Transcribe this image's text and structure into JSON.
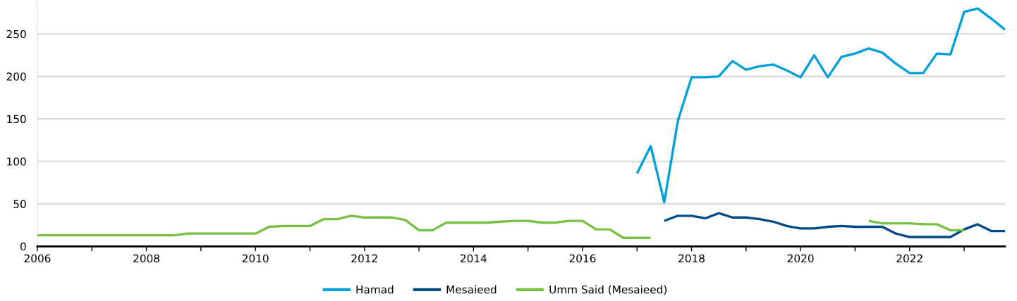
{
  "chart_data": {
    "type": "line",
    "xlim": [
      2006,
      2023.75
    ],
    "xticks": [
      2006,
      {
        "value": 2007,
        "label": null
      },
      2008,
      {
        "value": 2009,
        "label": null
      },
      2010,
      {
        "value": 2011,
        "label": null
      },
      2012,
      {
        "value": 2013,
        "label": null
      },
      2014,
      {
        "value": 2015,
        "label": null
      },
      2016,
      {
        "value": 2017,
        "label": null
      },
      2018,
      {
        "value": 2019,
        "label": null
      },
      2020,
      {
        "value": 2021,
        "label": null
      },
      2022,
      {
        "value": 2023,
        "label": null
      }
    ],
    "ylim": [
      0,
      288
    ],
    "yticks": [
      0,
      50,
      100,
      150,
      200,
      250
    ],
    "grid": "y",
    "legend": "bottom",
    "line_style": "solid",
    "series": [
      {
        "name": "Hamad",
        "color": "#00a0dc",
        "x": [
          2017.0,
          2017.25,
          2017.5,
          2017.75,
          2018.0,
          2018.25,
          2018.5,
          2018.75,
          2019.0,
          2019.25,
          2019.5,
          2019.75,
          2020.0,
          2020.25,
          2020.5,
          2020.75,
          2021.0,
          2021.25,
          2021.5,
          2021.75,
          2022.0,
          2022.25,
          2022.5,
          2022.75,
          2023.0,
          2023.25,
          2023.5,
          2023.75
        ],
        "values": [
          86,
          118,
          52,
          148,
          199,
          199,
          200,
          218,
          208,
          212,
          214,
          207,
          199,
          225,
          199,
          223,
          227,
          233,
          228,
          215,
          204,
          204,
          227,
          226,
          276,
          280,
          268,
          255
        ]
      },
      {
        "name": "Mesaieed",
        "color": "#004b87",
        "x": [
          2017.5,
          2017.75,
          2018.0,
          2018.25,
          2018.5,
          2018.75,
          2019.0,
          2019.25,
          2019.5,
          2019.75,
          2020.0,
          2020.25,
          2020.5,
          2020.75,
          2021.0,
          2021.25,
          2021.5,
          2021.75,
          2022.0,
          2022.25,
          2022.5,
          2022.75,
          2023.0,
          2023.25,
          2023.5,
          2023.75
        ],
        "values": [
          30,
          36,
          36,
          33,
          39,
          34,
          34,
          32,
          29,
          24,
          21,
          21,
          23,
          24,
          23,
          23,
          23,
          15,
          11,
          11,
          11,
          11,
          20,
          26,
          18,
          18
        ]
      },
      {
        "name": "Umm Said (Mesaieed)",
        "color": "#76c043",
        "x": [
          2006.0,
          2006.25,
          2006.5,
          2006.75,
          2007.0,
          2007.25,
          2007.5,
          2007.75,
          2008.0,
          2008.25,
          2008.5,
          2008.75,
          2009.0,
          2009.25,
          2009.5,
          2009.75,
          2010.0,
          2010.25,
          2010.5,
          2010.75,
          2011.0,
          2011.25,
          2011.5,
          2011.75,
          2012.0,
          2012.25,
          2012.5,
          2012.75,
          2013.0,
          2013.25,
          2013.5,
          2013.75,
          2014.0,
          2014.25,
          2014.5,
          2014.75,
          2015.0,
          2015.25,
          2015.5,
          2015.75,
          2016.0,
          2016.25,
          2016.5,
          2016.75,
          2017.0,
          2017.25,
          2017.5,
          2017.75,
          2018.0,
          2018.25,
          2018.5,
          2018.75,
          2019.0,
          2019.25,
          2019.5,
          2019.75,
          2020.0,
          2020.25,
          2020.5,
          2020.75,
          2021.0,
          2021.25,
          2021.5,
          2021.75,
          2022.0,
          2022.25,
          2022.5,
          2022.75,
          2023.0
        ],
        "values": [
          13,
          13,
          13,
          13,
          13,
          13,
          13,
          13,
          13,
          13,
          13,
          15,
          15,
          15,
          15,
          15,
          15,
          23,
          24,
          24,
          24,
          32,
          32,
          36,
          34,
          34,
          34,
          31,
          19,
          19,
          28,
          28,
          28,
          28,
          29,
          30,
          30,
          28,
          28,
          30,
          30,
          20,
          20,
          10,
          10,
          10,
          null,
          null,
          null,
          null,
          null,
          null,
          null,
          null,
          null,
          null,
          null,
          null,
          null,
          null,
          null,
          30,
          27,
          27,
          27,
          26,
          26,
          19,
          19
        ]
      }
    ]
  }
}
